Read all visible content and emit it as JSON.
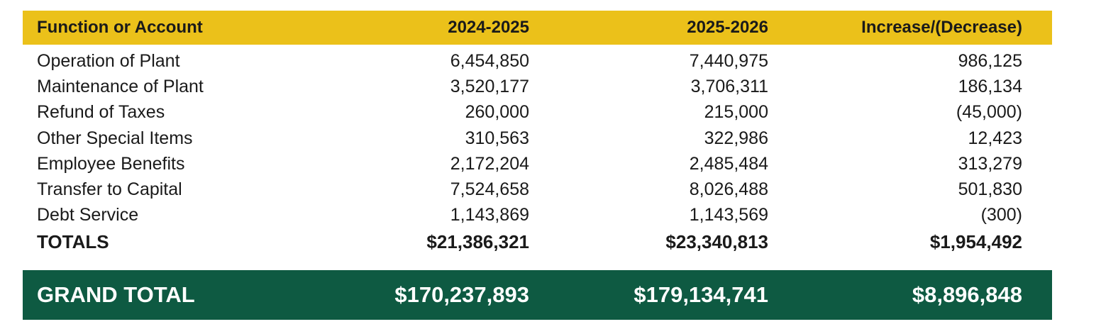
{
  "colors": {
    "header_bg": "#ebc11a",
    "grand_total_bg": "#0e5a42",
    "text": "#1a1a1a",
    "grand_total_text": "#ffffff"
  },
  "table": {
    "headers": [
      "Function or Account",
      "2024-2025",
      "2025-2026",
      "Increase/(Decrease)"
    ],
    "rows": [
      [
        "Operation of Plant",
        "6,454,850",
        "7,440,975",
        "986,125"
      ],
      [
        "Maintenance of Plant",
        "3,520,177",
        "3,706,311",
        "186,134"
      ],
      [
        "Refund of Taxes",
        "260,000",
        "215,000",
        "(45,000)"
      ],
      [
        "Other Special Items",
        "310,563",
        "322,986",
        "12,423"
      ],
      [
        "Employee Benefits",
        "2,172,204",
        "2,485,484",
        "313,279"
      ],
      [
        "Transfer to Capital",
        "7,524,658",
        "8,026,488",
        "501,830"
      ],
      [
        "Debt Service",
        "1,143,869",
        "1,143,569",
        "(300)"
      ]
    ],
    "totals": [
      "TOTALS",
      "$21,386,321",
      "$23,340,813",
      "$1,954,492"
    ],
    "grand_total": [
      "GRAND TOTAL",
      "$170,237,893",
      "$179,134,741",
      "$8,896,848"
    ]
  }
}
